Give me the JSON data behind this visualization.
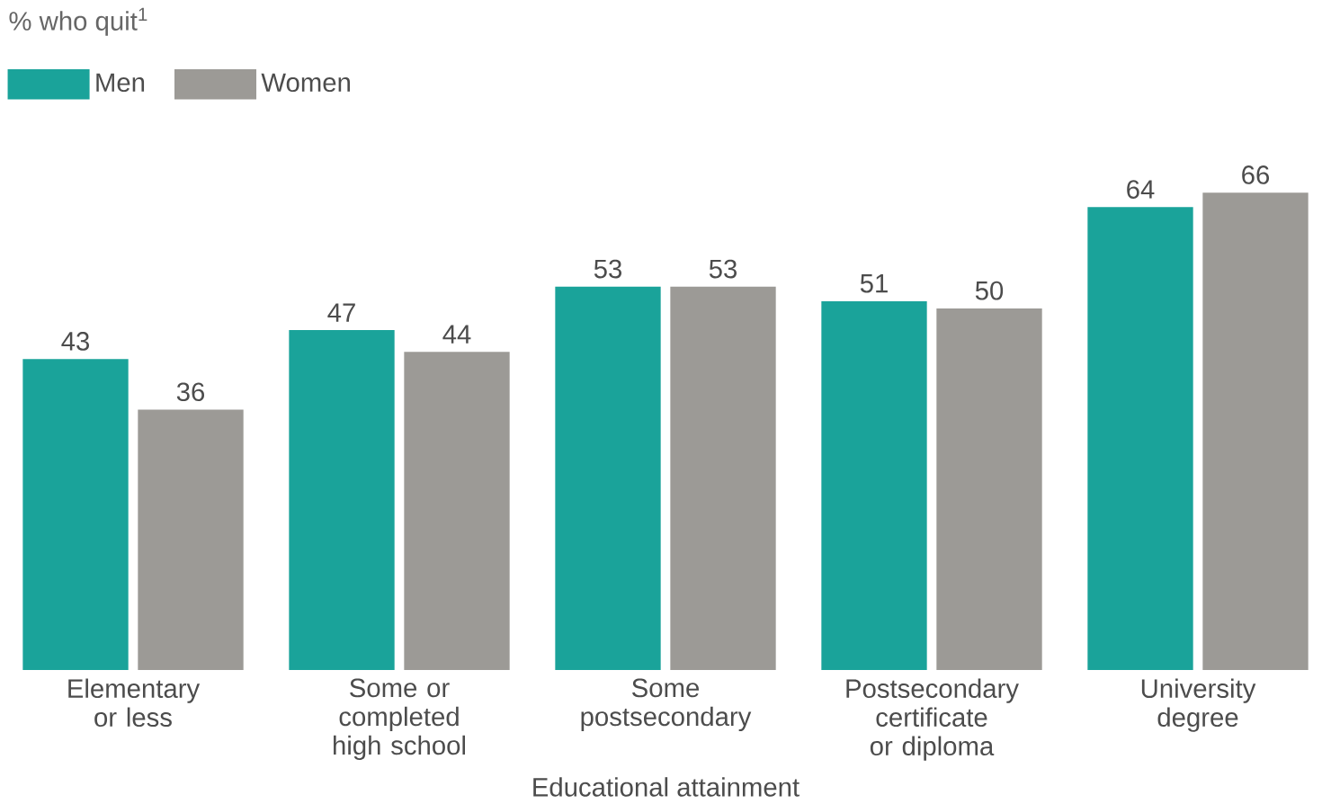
{
  "chart_data": {
    "type": "bar",
    "title": "% who quit$^{1}$",
    "xlabel": "Educational attainment",
    "categories": [
      "Elementary or less",
      "Some or completed high school",
      "Some postsecondary",
      "Postsecondary certificate or diploma",
      "University degree"
    ],
    "series": [
      {
        "name": "Men",
        "color": "#1aa39a",
        "values": [
          43,
          47,
          53,
          51,
          64
        ]
      },
      {
        "name": "Women",
        "color": "#9c9a96",
        "values": [
          36,
          44,
          53,
          50,
          66
        ]
      }
    ],
    "data_labels": true,
    "legend": "top left"
  }
}
